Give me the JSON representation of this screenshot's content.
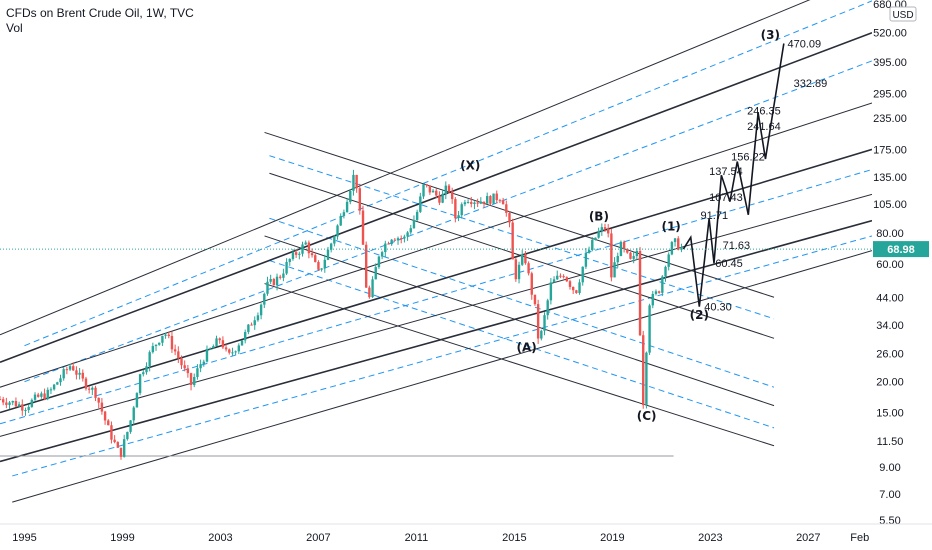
{
  "legend": {
    "title": "CFDs on Brent Crude Oil, 1W, TVC",
    "sub": "Vol"
  },
  "colors": {
    "bull": "#26a69a",
    "bear": "#ef5350",
    "channel": "#2a2e39",
    "dashed": "#2196f3",
    "price_tag": "#26a69a",
    "price_line": "#26a69a",
    "path": "#131722"
  },
  "chart_data": {
    "type": "line",
    "title": "CFDs on Brent Crude Oil, 1W, TVC",
    "y_scale": "log",
    "y_axis_currency": "USD",
    "ylim": [
      5.5,
      680.0
    ],
    "xlim": [
      1994.0,
      2029.6
    ],
    "y_ticks": [
      680.0,
      520.0,
      395.0,
      295.0,
      235.0,
      175.0,
      135.0,
      105.0,
      80.0,
      60.0,
      44.0,
      34.0,
      26.0,
      20.0,
      15.0,
      11.5,
      9.0,
      7.0,
      5.5
    ],
    "x_ticks": [
      {
        "label": "1995",
        "x": 1995
      },
      {
        "label": "1999",
        "x": 1999
      },
      {
        "label": "2003",
        "x": 2003
      },
      {
        "label": "2007",
        "x": 2007
      },
      {
        "label": "2011",
        "x": 2011
      },
      {
        "label": "2015",
        "x": 2015
      },
      {
        "label": "2019",
        "x": 2019
      },
      {
        "label": "2023",
        "x": 2023
      },
      {
        "label": "2027",
        "x": 2027
      },
      {
        "label": "Feb",
        "x": 2029.1
      }
    ],
    "current_price": "68.98",
    "price_series": [
      [
        1994.0,
        17.0
      ],
      [
        1994.5,
        16.5
      ],
      [
        1995.0,
        15.8
      ],
      [
        1995.5,
        17.2
      ],
      [
        1996.0,
        18.0
      ],
      [
        1996.5,
        21.0
      ],
      [
        1996.9,
        23.5
      ],
      [
        1997.3,
        20.5
      ],
      [
        1997.9,
        18.0
      ],
      [
        1998.4,
        13.0
      ],
      [
        1998.9,
        10.0
      ],
      [
        1999.3,
        13.5
      ],
      [
        1999.7,
        21.0
      ],
      [
        2000.2,
        27.0
      ],
      [
        2000.7,
        32.0
      ],
      [
        2001.2,
        26.0
      ],
      [
        2001.8,
        19.5
      ],
      [
        2002.3,
        25.0
      ],
      [
        2003.0,
        30.0
      ],
      [
        2003.3,
        25.0
      ],
      [
        2004.0,
        31.0
      ],
      [
        2004.6,
        40.0
      ],
      [
        2004.9,
        49.0
      ],
      [
        2005.4,
        53.0
      ],
      [
        2005.8,
        62.0
      ],
      [
        2006.5,
        73.0
      ],
      [
        2007.0,
        55.0
      ],
      [
        2007.5,
        72.0
      ],
      [
        2007.9,
        92.0
      ],
      [
        2008.5,
        143.0
      ],
      [
        2008.9,
        60.0
      ],
      [
        2009.0,
        40.0
      ],
      [
        2009.5,
        68.0
      ],
      [
        2010.0,
        78.0
      ],
      [
        2010.5,
        76.0
      ],
      [
        2011.0,
        95.0
      ],
      [
        2011.3,
        125.0
      ],
      [
        2012.0,
        110.0
      ],
      [
        2012.3,
        125.0
      ],
      [
        2012.6,
        92.0
      ],
      [
        2013.0,
        112.0
      ],
      [
        2013.5,
        108.0
      ],
      [
        2014.0,
        110.0
      ],
      [
        2014.5,
        113.0
      ],
      [
        2014.8,
        85.0
      ],
      [
        2015.0,
        52.0
      ],
      [
        2015.4,
        66.0
      ],
      [
        2015.9,
        37.0
      ],
      [
        2016.0,
        28.0
      ],
      [
        2016.5,
        50.0
      ],
      [
        2017.0,
        55.0
      ],
      [
        2017.5,
        46.0
      ],
      [
        2017.9,
        64.0
      ],
      [
        2018.4,
        80.0
      ],
      [
        2018.8,
        86.0
      ],
      [
        2018.95,
        53.0
      ],
      [
        2019.3,
        72.0
      ],
      [
        2019.8,
        60.0
      ],
      [
        2020.0,
        68.0
      ],
      [
        2020.25,
        16.0
      ],
      [
        2020.5,
        42.0
      ],
      [
        2020.9,
        47.0
      ],
      [
        2021.2,
        63.0
      ],
      [
        2021.5,
        74.0
      ],
      [
        2021.75,
        70.5
      ],
      [
        2021.9,
        68.98
      ]
    ],
    "projection_path": [
      [
        2021.9,
        68.98
      ],
      [
        2022.2,
        77.0
      ],
      [
        2022.55,
        40.3
      ],
      [
        2022.95,
        91.71
      ],
      [
        2023.15,
        60.45
      ],
      [
        2023.45,
        137.54
      ],
      [
        2023.8,
        107.43
      ],
      [
        2024.1,
        156.22
      ],
      [
        2024.55,
        95.0
      ],
      [
        2024.95,
        246.35
      ],
      [
        2025.25,
        160.0
      ],
      [
        2026.0,
        470.09
      ]
    ],
    "wave_labels": [
      {
        "label": "(X)",
        "x": 2013.2,
        "y": 145.0
      },
      {
        "label": "(B)",
        "x": 2018.45,
        "y": 90.0
      },
      {
        "label": "(1)",
        "x": 2021.4,
        "y": 82.0
      },
      {
        "label": "(A)",
        "x": 2015.5,
        "y": 26.5
      },
      {
        "label": "(C)",
        "x": 2020.4,
        "y": 14.0
      },
      {
        "label": "(2)",
        "x": 2022.55,
        "y": 36.0
      },
      {
        "label": "(3)",
        "x": 2025.45,
        "y": 490.0
      }
    ],
    "annotations": [
      {
        "text": "470.09",
        "x": 2026.15,
        "y": 470.09
      },
      {
        "text": "332.89",
        "x": 2026.4,
        "y": 325.0
      },
      {
        "text": "246.35",
        "x": 2024.5,
        "y": 252.0
      },
      {
        "text": "241.64",
        "x": 2024.5,
        "y": 218.0
      },
      {
        "text": "156.22",
        "x": 2023.85,
        "y": 164.0
      },
      {
        "text": "137.54",
        "x": 2022.95,
        "y": 143.0
      },
      {
        "text": "107.43",
        "x": 2022.95,
        "y": 112.0
      },
      {
        "text": "91.71",
        "x": 2022.6,
        "y": 95.0
      },
      {
        "text": "71.63",
        "x": 2023.5,
        "y": 71.63
      },
      {
        "text": "60.45",
        "x": 2023.2,
        "y": 60.45
      },
      {
        "text": "40.30",
        "x": 2022.75,
        "y": 40.3
      }
    ],
    "solid_lines": [
      {
        "x1": 1994.0,
        "y1": 31.0,
        "x2": 2029.6,
        "y2": 900.0
      },
      {
        "x1": 1994.0,
        "y1": 24.0,
        "x2": 2029.6,
        "y2": 520.0
      },
      {
        "x1": 1994.0,
        "y1": 19.0,
        "x2": 2029.6,
        "y2": 270.0
      },
      {
        "x1": 1994.0,
        "y1": 15.0,
        "x2": 2029.6,
        "y2": 175.0
      },
      {
        "x1": 1994.0,
        "y1": 12.0,
        "x2": 2029.6,
        "y2": 115.0
      },
      {
        "x1": 1994.0,
        "y1": 9.5,
        "x2": 2029.6,
        "y2": 90.0
      },
      {
        "x1": 1994.5,
        "y1": 6.5,
        "x2": 2029.6,
        "y2": 68.0
      },
      {
        "x1": 2004.8,
        "y1": 205.0,
        "x2": 2025.6,
        "y2": 44.0
      },
      {
        "x1": 2005.0,
        "y1": 140.0,
        "x2": 2025.6,
        "y2": 30.0
      },
      {
        "x1": 2004.8,
        "y1": 78.0,
        "x2": 2025.6,
        "y2": 16.0
      },
      {
        "x1": 2004.8,
        "y1": 50.0,
        "x2": 2025.6,
        "y2": 11.0
      }
    ],
    "dashed_lines": [
      {
        "x1": 1994.0,
        "y1": 13.5,
        "x2": 2029.6,
        "y2": 145.0
      },
      {
        "x1": 1994.5,
        "y1": 8.3,
        "x2": 2029.6,
        "y2": 78.0
      },
      {
        "x1": 1995.0,
        "y1": 20.0,
        "x2": 2029.6,
        "y2": 400.0
      },
      {
        "x1": 1995.0,
        "y1": 28.0,
        "x2": 2029.6,
        "y2": 700.0
      },
      {
        "x1": 2005.0,
        "y1": 165.0,
        "x2": 2025.6,
        "y2": 36.0
      },
      {
        "x1": 2005.0,
        "y1": 92.0,
        "x2": 2025.6,
        "y2": 19.0
      },
      {
        "x1": 2005.0,
        "y1": 62.0,
        "x2": 2025.6,
        "y2": 13.0
      }
    ],
    "baseline": {
      "y": 10.0,
      "x1": 1994.0,
      "x2": 2021.5
    }
  }
}
